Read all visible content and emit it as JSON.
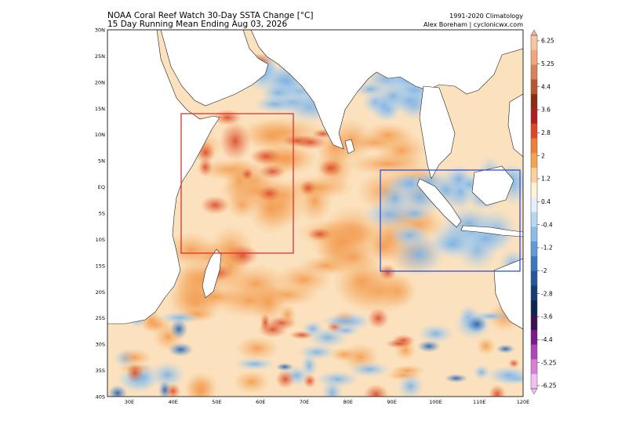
{
  "header": {
    "title_line1": "NOAA Coral Reef Watch 30-Day SSTA Change [°C]",
    "title_line2": "15 Day Running Mean Ending Aug 03, 2026",
    "credit_line1": "1991-2020 Climatology",
    "credit_line2": "Alex Boreham | cyclonicwx.com"
  },
  "map": {
    "lat_labels": [
      "30N",
      "25N",
      "20N",
      "15N",
      "10N",
      "5N",
      "EQ",
      "5S",
      "10S",
      "15S",
      "20S",
      "25S",
      "30S",
      "35S",
      "40S"
    ],
    "lon_labels": [
      "30E",
      "40E",
      "50E",
      "60E",
      "70E",
      "80E",
      "90E",
      "100E",
      "110E",
      "120E"
    ],
    "regions": [
      {
        "name": "Western Indian Ocean box",
        "color": "#e03030",
        "lon": [
          42,
          67
        ],
        "lat": [
          -12.5,
          14
        ]
      },
      {
        "name": "Eastern Indian Ocean box",
        "color": "#3050d0",
        "lon": [
          87.5,
          119.5
        ],
        "lat": [
          -16,
          3
        ]
      }
    ]
  },
  "colorbar": {
    "labels": [
      "6.25",
      "5.25",
      "4.4",
      "3.6",
      "2.8",
      "2",
      "1.2",
      "0.4",
      "-0.4",
      "-1.2",
      "-2",
      "-2.8",
      "-3.6",
      "-4.4",
      "-5.25",
      "-6.25"
    ],
    "colors": [
      "#f4c7a0",
      "#f0a87a",
      "#d9825a",
      "#b8562f",
      "#8c2a12",
      "#b31e1e",
      "#e0452a",
      "#f07c3a",
      "#f5a550",
      "#fbd09a",
      "#fff2d5",
      "#e4f0fb",
      "#b8d8f2",
      "#8cbde8",
      "#5e9cd8",
      "#3a78c2",
      "#2456a0",
      "#163a78",
      "#0d2550",
      "#3a1250",
      "#7a1a8a",
      "#b045b8",
      "#d880d8",
      "#f0c0f0"
    ]
  }
}
